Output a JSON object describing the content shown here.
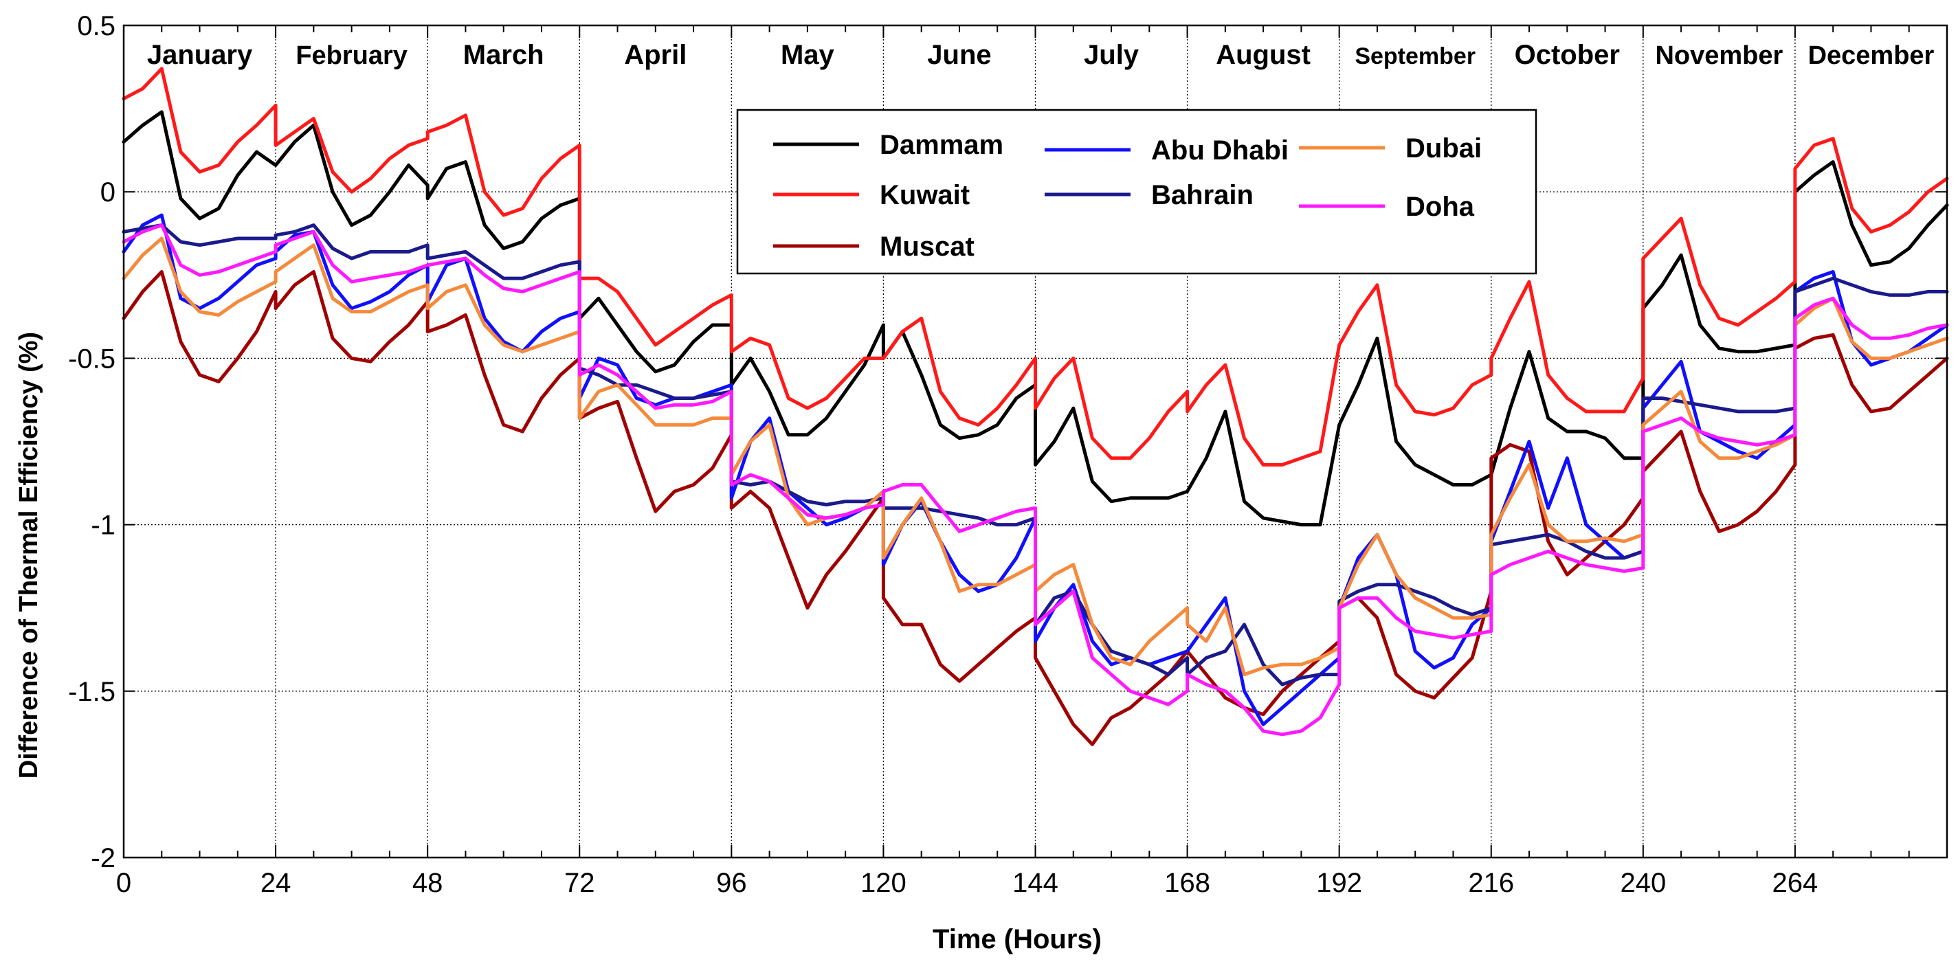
{
  "chart_data": {
    "type": "line",
    "title": "",
    "xlabel": "Time (Hours)",
    "ylabel": "Difference of Thermal Efficiency (%)",
    "xlim": [
      0,
      288
    ],
    "ylim": [
      -2,
      0.5
    ],
    "xticks": [
      0,
      24,
      48,
      72,
      96,
      120,
      144,
      168,
      192,
      216,
      240,
      264
    ],
    "xtick_labels": [
      "0",
      "24",
      "48",
      "72",
      "96",
      "120",
      "144",
      "168",
      "192",
      "216",
      "240",
      "264"
    ],
    "yticks": [
      -2,
      -1.5,
      -1,
      -0.5,
      0,
      0.5
    ],
    "ytick_labels": [
      "-2",
      "-1.5",
      "-1",
      "-0.5",
      "0",
      "0.5"
    ],
    "month_boundaries": [
      24,
      48,
      72,
      96,
      120,
      144,
      168,
      192,
      216,
      240,
      264
    ],
    "months": [
      "January",
      "February",
      "March",
      "April",
      "May",
      "June",
      "July",
      "August",
      "September",
      "October",
      "November",
      "December"
    ],
    "grid": true,
    "legend_position": "top-center",
    "x": [
      0,
      3,
      6,
      9,
      12,
      15,
      18,
      21,
      24
    ],
    "series": [
      {
        "name": "Dammam",
        "color": "#000000",
        "months": [
          [
            0.15,
            0.2,
            0.24,
            -0.02,
            -0.08,
            -0.05,
            0.05,
            0.12,
            0.08
          ],
          [
            0.08,
            0.15,
            0.2,
            0.0,
            -0.1,
            -0.07,
            0.0,
            0.08,
            0.02
          ],
          [
            -0.02,
            0.07,
            0.09,
            -0.1,
            -0.17,
            -0.15,
            -0.08,
            -0.04,
            -0.02
          ],
          [
            -0.38,
            -0.32,
            -0.4,
            -0.48,
            -0.54,
            -0.52,
            -0.45,
            -0.4,
            -0.4
          ],
          [
            -0.58,
            -0.5,
            -0.6,
            -0.73,
            -0.73,
            -0.68,
            -0.6,
            -0.52,
            -0.4
          ],
          [
            -0.5,
            -0.42,
            -0.55,
            -0.7,
            -0.74,
            -0.73,
            -0.7,
            -0.62,
            -0.58
          ],
          [
            -0.82,
            -0.75,
            -0.65,
            -0.87,
            -0.93,
            -0.92,
            -0.92,
            -0.92,
            -0.9
          ],
          [
            -0.9,
            -0.8,
            -0.66,
            -0.93,
            -0.98,
            -0.99,
            -1.0,
            -1.0,
            -0.7
          ],
          [
            -0.7,
            -0.58,
            -0.44,
            -0.75,
            -0.82,
            -0.85,
            -0.88,
            -0.88,
            -0.85
          ],
          [
            -0.85,
            -0.65,
            -0.48,
            -0.68,
            -0.72,
            -0.72,
            -0.74,
            -0.8,
            -0.8
          ],
          [
            -0.35,
            -0.28,
            -0.19,
            -0.4,
            -0.47,
            -0.48,
            -0.48,
            -0.47,
            -0.46
          ],
          [
            0.0,
            0.05,
            0.09,
            -0.1,
            -0.22,
            -0.21,
            -0.17,
            -0.1,
            -0.04
          ]
        ]
      },
      {
        "name": "Kuwait",
        "color": "#ff1a1a",
        "months": [
          [
            0.28,
            0.31,
            0.37,
            0.12,
            0.06,
            0.08,
            0.15,
            0.2,
            0.26
          ],
          [
            0.14,
            0.18,
            0.22,
            0.06,
            0.0,
            0.04,
            0.1,
            0.14,
            0.16
          ],
          [
            0.18,
            0.2,
            0.23,
            0.0,
            -0.07,
            -0.05,
            0.04,
            0.1,
            0.14
          ],
          [
            -0.26,
            -0.26,
            -0.3,
            -0.38,
            -0.46,
            -0.42,
            -0.38,
            -0.34,
            -0.31
          ],
          [
            -0.48,
            -0.44,
            -0.46,
            -0.62,
            -0.65,
            -0.62,
            -0.56,
            -0.5,
            -0.5
          ],
          [
            -0.5,
            -0.42,
            -0.38,
            -0.6,
            -0.68,
            -0.7,
            -0.65,
            -0.58,
            -0.5
          ],
          [
            -0.65,
            -0.56,
            -0.5,
            -0.74,
            -0.8,
            -0.8,
            -0.74,
            -0.66,
            -0.6
          ],
          [
            -0.66,
            -0.58,
            -0.52,
            -0.74,
            -0.82,
            -0.82,
            -0.8,
            -0.78,
            -0.46
          ],
          [
            -0.46,
            -0.36,
            -0.28,
            -0.58,
            -0.66,
            -0.67,
            -0.65,
            -0.58,
            -0.55
          ],
          [
            -0.5,
            -0.38,
            -0.27,
            -0.55,
            -0.62,
            -0.66,
            -0.66,
            -0.66,
            -0.56
          ],
          [
            -0.2,
            -0.14,
            -0.08,
            -0.28,
            -0.38,
            -0.4,
            -0.36,
            -0.32,
            -0.27
          ],
          [
            0.07,
            0.14,
            0.16,
            -0.05,
            -0.12,
            -0.1,
            -0.06,
            0.0,
            0.04
          ]
        ]
      },
      {
        "name": "Muscat",
        "color": "#a00000",
        "months": [
          [
            -0.38,
            -0.3,
            -0.24,
            -0.45,
            -0.55,
            -0.57,
            -0.5,
            -0.42,
            -0.3
          ],
          [
            -0.35,
            -0.28,
            -0.24,
            -0.44,
            -0.5,
            -0.51,
            -0.45,
            -0.4,
            -0.33
          ],
          [
            -0.42,
            -0.4,
            -0.37,
            -0.55,
            -0.7,
            -0.72,
            -0.62,
            -0.55,
            -0.5
          ],
          [
            -0.68,
            -0.65,
            -0.63,
            -0.8,
            -0.96,
            -0.9,
            -0.88,
            -0.83,
            -0.73
          ],
          [
            -0.95,
            -0.9,
            -0.95,
            -1.1,
            -1.25,
            -1.15,
            -1.08,
            -1.0,
            -0.92
          ],
          [
            -1.22,
            -1.3,
            -1.3,
            -1.42,
            -1.47,
            -1.42,
            -1.37,
            -1.32,
            -1.28
          ],
          [
            -1.4,
            -1.5,
            -1.6,
            -1.66,
            -1.58,
            -1.55,
            -1.5,
            -1.45,
            -1.38
          ],
          [
            -1.38,
            -1.45,
            -1.52,
            -1.55,
            -1.57,
            -1.5,
            -1.45,
            -1.4,
            -1.35
          ],
          [
            -1.25,
            -1.22,
            -1.28,
            -1.45,
            -1.5,
            -1.52,
            -1.46,
            -1.4,
            -1.2
          ],
          [
            -0.8,
            -0.76,
            -0.78,
            -1.05,
            -1.15,
            -1.1,
            -1.05,
            -1.0,
            -0.92
          ],
          [
            -0.84,
            -0.78,
            -0.72,
            -0.9,
            -1.02,
            -1.0,
            -0.96,
            -0.9,
            -0.82
          ],
          [
            -0.47,
            -0.44,
            -0.43,
            -0.58,
            -0.66,
            -0.65,
            -0.6,
            -0.55,
            -0.5
          ]
        ]
      },
      {
        "name": "Abu Dhabi",
        "color": "#1010ff",
        "months": [
          [
            -0.18,
            -0.1,
            -0.07,
            -0.32,
            -0.35,
            -0.32,
            -0.27,
            -0.22,
            -0.2
          ],
          [
            -0.18,
            -0.13,
            -0.12,
            -0.28,
            -0.35,
            -0.33,
            -0.3,
            -0.25,
            -0.22
          ],
          [
            -0.33,
            -0.22,
            -0.2,
            -0.38,
            -0.45,
            -0.48,
            -0.42,
            -0.38,
            -0.36
          ],
          [
            -0.62,
            -0.5,
            -0.52,
            -0.62,
            -0.64,
            -0.62,
            -0.62,
            -0.6,
            -0.58
          ],
          [
            -0.92,
            -0.75,
            -0.68,
            -0.9,
            -0.95,
            -1.0,
            -0.98,
            -0.95,
            -0.9
          ],
          [
            -1.12,
            -1.0,
            -0.93,
            -1.05,
            -1.15,
            -1.2,
            -1.18,
            -1.1,
            -0.98
          ],
          [
            -1.35,
            -1.25,
            -1.18,
            -1.35,
            -1.42,
            -1.4,
            -1.42,
            -1.4,
            -1.38
          ],
          [
            -1.38,
            -1.3,
            -1.22,
            -1.5,
            -1.6,
            -1.55,
            -1.5,
            -1.45,
            -1.4
          ],
          [
            -1.25,
            -1.1,
            -1.03,
            -1.15,
            -1.38,
            -1.43,
            -1.4,
            -1.3,
            -1.25
          ],
          [
            -1.05,
            -0.9,
            -0.75,
            -0.95,
            -0.8,
            -1.0,
            -1.05,
            -1.1,
            -1.08
          ],
          [
            -0.65,
            -0.58,
            -0.51,
            -0.72,
            -0.75,
            -0.78,
            -0.8,
            -0.75,
            -0.7
          ],
          [
            -0.3,
            -0.26,
            -0.24,
            -0.45,
            -0.52,
            -0.5,
            -0.48,
            -0.44,
            -0.4
          ]
        ]
      },
      {
        "name": "Bahrain",
        "color": "#1a1a8c",
        "months": [
          [
            -0.12,
            -0.11,
            -0.1,
            -0.15,
            -0.16,
            -0.15,
            -0.14,
            -0.14,
            -0.14
          ],
          [
            -0.13,
            -0.12,
            -0.1,
            -0.17,
            -0.2,
            -0.18,
            -0.18,
            -0.18,
            -0.16
          ],
          [
            -0.2,
            -0.19,
            -0.18,
            -0.22,
            -0.26,
            -0.26,
            -0.24,
            -0.22,
            -0.21
          ],
          [
            -0.53,
            -0.55,
            -0.58,
            -0.58,
            -0.6,
            -0.62,
            -0.62,
            -0.61,
            -0.6
          ],
          [
            -0.87,
            -0.88,
            -0.87,
            -0.9,
            -0.93,
            -0.94,
            -0.93,
            -0.93,
            -0.92
          ],
          [
            -0.95,
            -0.95,
            -0.95,
            -0.96,
            -0.97,
            -0.98,
            -1.0,
            -1.0,
            -0.98
          ],
          [
            -1.3,
            -1.22,
            -1.2,
            -1.3,
            -1.38,
            -1.4,
            -1.42,
            -1.45,
            -1.4
          ],
          [
            -1.45,
            -1.4,
            -1.38,
            -1.3,
            -1.42,
            -1.48,
            -1.46,
            -1.45,
            -1.45
          ],
          [
            -1.23,
            -1.2,
            -1.18,
            -1.18,
            -1.2,
            -1.22,
            -1.25,
            -1.27,
            -1.25
          ],
          [
            -1.06,
            -1.05,
            -1.04,
            -1.03,
            -1.05,
            -1.08,
            -1.1,
            -1.1,
            -1.08
          ],
          [
            -0.62,
            -0.62,
            -0.63,
            -0.64,
            -0.65,
            -0.66,
            -0.66,
            -0.66,
            -0.65
          ],
          [
            -0.3,
            -0.28,
            -0.26,
            -0.28,
            -0.3,
            -0.31,
            -0.31,
            -0.3,
            -0.3
          ]
        ]
      },
      {
        "name": "Dubai",
        "color": "#f58a3c",
        "months": [
          [
            -0.26,
            -0.19,
            -0.14,
            -0.3,
            -0.36,
            -0.37,
            -0.33,
            -0.3,
            -0.27
          ],
          [
            -0.24,
            -0.2,
            -0.16,
            -0.32,
            -0.36,
            -0.36,
            -0.33,
            -0.3,
            -0.28
          ],
          [
            -0.35,
            -0.3,
            -0.28,
            -0.4,
            -0.46,
            -0.48,
            -0.46,
            -0.44,
            -0.42
          ],
          [
            -0.68,
            -0.6,
            -0.58,
            -0.64,
            -0.7,
            -0.7,
            -0.7,
            -0.68,
            -0.68
          ],
          [
            -0.85,
            -0.75,
            -0.7,
            -0.92,
            -1.0,
            -0.98,
            -0.97,
            -0.95,
            -0.9
          ],
          [
            -1.1,
            -1.0,
            -0.92,
            -1.05,
            -1.2,
            -1.18,
            -1.18,
            -1.15,
            -1.12
          ],
          [
            -1.2,
            -1.15,
            -1.12,
            -1.3,
            -1.4,
            -1.42,
            -1.35,
            -1.3,
            -1.25
          ],
          [
            -1.3,
            -1.35,
            -1.25,
            -1.45,
            -1.43,
            -1.42,
            -1.42,
            -1.4,
            -1.37
          ],
          [
            -1.25,
            -1.12,
            -1.03,
            -1.15,
            -1.22,
            -1.25,
            -1.28,
            -1.28,
            -1.27
          ],
          [
            -1.03,
            -0.92,
            -0.82,
            -1.0,
            -1.05,
            -1.05,
            -1.04,
            -1.05,
            -1.03
          ],
          [
            -0.7,
            -0.65,
            -0.6,
            -0.75,
            -0.8,
            -0.8,
            -0.78,
            -0.76,
            -0.73
          ],
          [
            -0.4,
            -0.35,
            -0.32,
            -0.45,
            -0.5,
            -0.5,
            -0.48,
            -0.46,
            -0.44
          ]
        ]
      },
      {
        "name": "Doha",
        "color": "#ff1aff",
        "months": [
          [
            -0.15,
            -0.12,
            -0.1,
            -0.22,
            -0.25,
            -0.24,
            -0.22,
            -0.2,
            -0.18
          ],
          [
            -0.16,
            -0.14,
            -0.12,
            -0.22,
            -0.27,
            -0.26,
            -0.25,
            -0.24,
            -0.22
          ],
          [
            -0.22,
            -0.21,
            -0.2,
            -0.25,
            -0.29,
            -0.3,
            -0.28,
            -0.26,
            -0.24
          ],
          [
            -0.55,
            -0.52,
            -0.55,
            -0.6,
            -0.65,
            -0.64,
            -0.64,
            -0.63,
            -0.6
          ],
          [
            -0.88,
            -0.85,
            -0.87,
            -0.92,
            -0.97,
            -0.98,
            -0.97,
            -0.95,
            -0.94
          ],
          [
            -0.9,
            -0.88,
            -0.88,
            -0.95,
            -1.02,
            -1.0,
            -0.98,
            -0.96,
            -0.95
          ],
          [
            -1.3,
            -1.25,
            -1.2,
            -1.4,
            -1.45,
            -1.5,
            -1.52,
            -1.54,
            -1.5
          ],
          [
            -1.45,
            -1.48,
            -1.5,
            -1.55,
            -1.62,
            -1.63,
            -1.62,
            -1.58,
            -1.48
          ],
          [
            -1.25,
            -1.22,
            -1.22,
            -1.28,
            -1.32,
            -1.33,
            -1.34,
            -1.33,
            -1.32
          ],
          [
            -1.15,
            -1.12,
            -1.1,
            -1.08,
            -1.1,
            -1.12,
            -1.13,
            -1.14,
            -1.13
          ],
          [
            -0.72,
            -0.7,
            -0.68,
            -0.72,
            -0.74,
            -0.75,
            -0.76,
            -0.75,
            -0.73
          ],
          [
            -0.38,
            -0.34,
            -0.32,
            -0.4,
            -0.44,
            -0.44,
            -0.43,
            -0.41,
            -0.4
          ]
        ]
      }
    ]
  }
}
